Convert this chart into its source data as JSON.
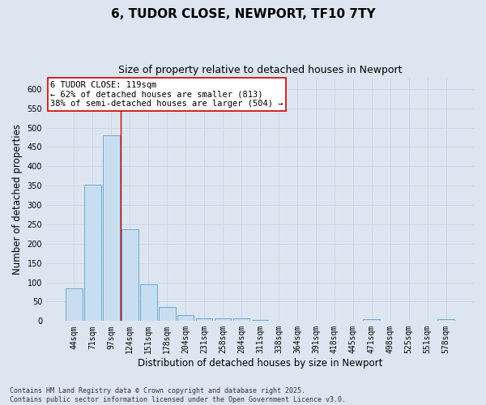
{
  "title": "6, TUDOR CLOSE, NEWPORT, TF10 7TY",
  "subtitle": "Size of property relative to detached houses in Newport",
  "xlabel": "Distribution of detached houses by size in Newport",
  "ylabel": "Number of detached properties",
  "categories": [
    "44sqm",
    "71sqm",
    "97sqm",
    "124sqm",
    "151sqm",
    "178sqm",
    "204sqm",
    "231sqm",
    "258sqm",
    "284sqm",
    "311sqm",
    "338sqm",
    "364sqm",
    "391sqm",
    "418sqm",
    "445sqm",
    "471sqm",
    "498sqm",
    "525sqm",
    "551sqm",
    "578sqm"
  ],
  "values": [
    85,
    352,
    480,
    237,
    96,
    37,
    16,
    7,
    8,
    7,
    3,
    0,
    0,
    0,
    0,
    0,
    5,
    0,
    0,
    0,
    4
  ],
  "bar_color": "#c9ddf0",
  "bar_edge_color": "#6aaad4",
  "grid_color": "#ccd6e8",
  "background_color": "#dde6f0",
  "vline_x": 2.5,
  "vline_color": "#cc0000",
  "annotation_text": "6 TUDOR CLOSE: 119sqm\n← 62% of detached houses are smaller (813)\n38% of semi-detached houses are larger (504) →",
  "annotation_box_color": "#ffffff",
  "annotation_box_edge": "#cc0000",
  "ylim": [
    0,
    630
  ],
  "yticks": [
    0,
    50,
    100,
    150,
    200,
    250,
    300,
    350,
    400,
    450,
    500,
    550,
    600
  ],
  "footer": "Contains HM Land Registry data © Crown copyright and database right 2025.\nContains public sector information licensed under the Open Government Licence v3.0.",
  "title_fontsize": 11,
  "subtitle_fontsize": 9,
  "tick_fontsize": 7,
  "ylabel_fontsize": 8.5,
  "xlabel_fontsize": 8.5,
  "footer_fontsize": 6
}
